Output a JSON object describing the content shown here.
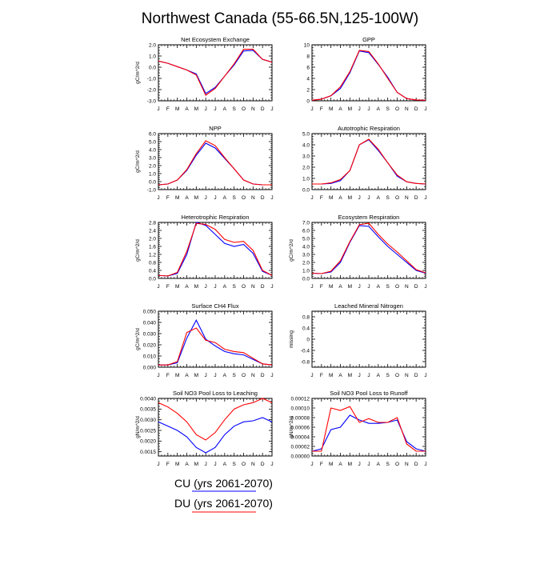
{
  "page": {
    "title": "Northwest Canada (55-66.5N,125-100W)"
  },
  "legend": [
    {
      "label": "CU (yrs 2061-2070)",
      "color": "#0000ff"
    },
    {
      "label": "DU (yrs 2061-2070)",
      "color": "#ff0000"
    }
  ],
  "chart_data": [
    {
      "type": "line",
      "title": "Net Ecosystem Exchange",
      "ylabel": "gC/m^2/d",
      "x": [
        "J",
        "F",
        "M",
        "A",
        "M",
        "J",
        "J",
        "A",
        "S",
        "O",
        "N",
        "D",
        "J"
      ],
      "ylim": [
        -3.0,
        2.0
      ],
      "yticks": [
        -3.0,
        -2.0,
        -1.0,
        0.0,
        1.0,
        2.0
      ],
      "ytick_labels": [
        "-3.0",
        "-2.0",
        "-1.0",
        "0.0",
        "1.0",
        "2.0"
      ],
      "series": [
        {
          "color": "#0000ff",
          "values": [
            0.55,
            0.35,
            0.05,
            -0.25,
            -0.6,
            -2.35,
            -1.8,
            -0.8,
            0.2,
            1.45,
            1.5,
            0.7,
            0.45
          ]
        },
        {
          "color": "#ff0000",
          "values": [
            0.55,
            0.35,
            0.05,
            -0.25,
            -0.7,
            -2.5,
            -1.9,
            -0.8,
            0.3,
            1.6,
            1.6,
            0.7,
            0.45
          ]
        }
      ]
    },
    {
      "type": "line",
      "title": "GPP",
      "ylabel": "",
      "x": [
        "J",
        "F",
        "M",
        "A",
        "M",
        "J",
        "J",
        "A",
        "S",
        "O",
        "N",
        "D",
        "J"
      ],
      "ylim": [
        0,
        10
      ],
      "yticks": [
        0,
        2,
        4,
        6,
        8,
        10
      ],
      "ytick_labels": [
        "0",
        "2",
        "4",
        "6",
        "8",
        "10"
      ],
      "series": [
        {
          "color": "#0000ff",
          "values": [
            0.1,
            0.3,
            0.9,
            2.2,
            5.0,
            8.9,
            8.6,
            6.5,
            4.2,
            1.5,
            0.4,
            0.15,
            0.1
          ]
        },
        {
          "color": "#ff0000",
          "values": [
            0.1,
            0.3,
            0.9,
            2.5,
            5.2,
            9.0,
            8.8,
            6.6,
            4.0,
            1.5,
            0.4,
            0.15,
            0.1
          ]
        }
      ]
    },
    {
      "type": "line",
      "title": "NPP",
      "ylabel": "gC/m^2/d",
      "x": [
        "J",
        "F",
        "M",
        "A",
        "M",
        "J",
        "J",
        "A",
        "S",
        "O",
        "N",
        "D",
        "J"
      ],
      "ylim": [
        -1.0,
        6.0
      ],
      "yticks": [
        -1.0,
        0.0,
        1.0,
        2.0,
        3.0,
        4.0,
        5.0,
        6.0
      ],
      "ytick_labels": [
        "-1.0",
        "0.0",
        "1.0",
        "2.0",
        "3.0",
        "4.0",
        "5.0",
        "6.0"
      ],
      "series": [
        {
          "color": "#0000ff",
          "values": [
            -0.4,
            -0.3,
            0.2,
            1.4,
            3.3,
            4.8,
            4.2,
            2.9,
            1.6,
            0.2,
            -0.3,
            -0.4,
            -0.4
          ]
        },
        {
          "color": "#ff0000",
          "values": [
            -0.4,
            -0.3,
            0.2,
            1.5,
            3.5,
            5.1,
            4.5,
            3.0,
            1.6,
            0.2,
            -0.3,
            -0.4,
            -0.4
          ]
        }
      ]
    },
    {
      "type": "line",
      "title": "Autotrophic Respiration",
      "ylabel": "",
      "x": [
        "J",
        "F",
        "M",
        "A",
        "M",
        "J",
        "J",
        "A",
        "S",
        "O",
        "N",
        "D",
        "J"
      ],
      "ylim": [
        0.0,
        5.0
      ],
      "yticks": [
        0.0,
        1.0,
        2.0,
        3.0,
        4.0,
        5.0
      ],
      "ytick_labels": [
        "0.0",
        "1.0",
        "2.0",
        "3.0",
        "4.0",
        "5.0"
      ],
      "series": [
        {
          "color": "#0000ff",
          "values": [
            0.5,
            0.5,
            0.55,
            0.8,
            1.7,
            4.0,
            4.45,
            3.5,
            2.4,
            1.2,
            0.7,
            0.55,
            0.5
          ]
        },
        {
          "color": "#ff0000",
          "values": [
            0.5,
            0.5,
            0.6,
            0.9,
            1.7,
            4.0,
            4.5,
            3.6,
            2.4,
            1.3,
            0.7,
            0.55,
            0.5
          ]
        }
      ]
    },
    {
      "type": "line",
      "title": "Heterotrophic Respiration",
      "ylabel": "gC/m^2/d",
      "x": [
        "J",
        "F",
        "M",
        "A",
        "M",
        "J",
        "J",
        "A",
        "S",
        "O",
        "N",
        "D",
        "J"
      ],
      "ylim": [
        0.0,
        2.8
      ],
      "yticks": [
        0.0,
        0.4,
        0.8,
        1.2,
        1.6,
        2.0,
        2.4,
        2.8
      ],
      "ytick_labels": [
        "0.0",
        "0.4",
        "0.8",
        "1.2",
        "1.6",
        "2.0",
        "2.4",
        "2.8"
      ],
      "series": [
        {
          "color": "#0000ff",
          "values": [
            0.15,
            0.12,
            0.25,
            1.2,
            2.8,
            2.65,
            2.2,
            1.75,
            1.6,
            1.7,
            1.25,
            0.35,
            0.15
          ]
        },
        {
          "color": "#ff0000",
          "values": [
            0.15,
            0.12,
            0.3,
            1.35,
            2.75,
            2.7,
            2.45,
            1.95,
            1.8,
            1.85,
            1.4,
            0.4,
            0.15
          ]
        }
      ]
    },
    {
      "type": "line",
      "title": "Ecosystem Respiration",
      "ylabel": "gC/m^2/d",
      "x": [
        "J",
        "F",
        "M",
        "A",
        "M",
        "J",
        "J",
        "A",
        "S",
        "O",
        "N",
        "D",
        "J"
      ],
      "ylim": [
        0.0,
        7.0
      ],
      "yticks": [
        0.0,
        1.0,
        2.0,
        3.0,
        4.0,
        5.0,
        6.0,
        7.0
      ],
      "ytick_labels": [
        "0.0",
        "1.0",
        "2.0",
        "3.0",
        "4.0",
        "5.0",
        "6.0",
        "7.0"
      ],
      "series": [
        {
          "color": "#0000ff",
          "values": [
            0.65,
            0.6,
            0.8,
            2.0,
            4.5,
            6.6,
            6.5,
            5.2,
            4.0,
            3.0,
            2.0,
            1.0,
            0.65
          ]
        },
        {
          "color": "#ff0000",
          "values": [
            0.65,
            0.6,
            0.9,
            2.2,
            4.6,
            6.7,
            6.9,
            5.5,
            4.3,
            3.3,
            2.2,
            1.1,
            0.7
          ]
        }
      ]
    },
    {
      "type": "line",
      "title": "Surface CH4 Flux",
      "ylabel": "gC/m^2/d",
      "x": [
        "J",
        "F",
        "M",
        "A",
        "M",
        "J",
        "J",
        "A",
        "S",
        "O",
        "N",
        "D",
        "J"
      ],
      "ylim": [
        0.0,
        0.05
      ],
      "yticks": [
        0.0,
        0.01,
        0.02,
        0.03,
        0.04,
        0.05
      ],
      "ytick_labels": [
        "0.000",
        "0.010",
        "0.020",
        "0.030",
        "0.040",
        "0.050"
      ],
      "series": [
        {
          "color": "#0000ff",
          "values": [
            0.002,
            0.002,
            0.004,
            0.026,
            0.042,
            0.025,
            0.019,
            0.014,
            0.012,
            0.011,
            0.007,
            0.003,
            0.002
          ]
        },
        {
          "color": "#ff0000",
          "values": [
            0.002,
            0.002,
            0.005,
            0.031,
            0.035,
            0.024,
            0.022,
            0.016,
            0.014,
            0.013,
            0.008,
            0.003,
            0.002
          ]
        }
      ]
    },
    {
      "type": "line",
      "title": "Leached Mineral Nitrogen",
      "ylabel": "missing",
      "x": [
        "J",
        "F",
        "M",
        "A",
        "M",
        "J",
        "J",
        "A",
        "S",
        "O",
        "N",
        "D",
        "J"
      ],
      "ylim": [
        -1.0,
        1.0
      ],
      "yticks": [
        -0.8,
        -0.4,
        0.0,
        0.4,
        0.8
      ],
      "ytick_labels": [
        "-0.8",
        "-0.4",
        "0",
        "0.4",
        "0.8"
      ],
      "series": []
    },
    {
      "type": "line",
      "title": "Soil NO3 Pool Loss to Leaching",
      "ylabel": "gN/m^2/d",
      "x": [
        "J",
        "F",
        "M",
        "A",
        "M",
        "J",
        "J",
        "A",
        "S",
        "O",
        "N",
        "D",
        "J"
      ],
      "ylim": [
        0.0013,
        0.004
      ],
      "yticks": [
        0.0015,
        0.002,
        0.0025,
        0.003,
        0.0035,
        0.004
      ],
      "ytick_labels": [
        "0.0015",
        "0.0020",
        "0.0025",
        "0.0030",
        "0.0035",
        "0.0040"
      ],
      "series": [
        {
          "color": "#0000ff",
          "values": [
            0.0029,
            0.0027,
            0.0025,
            0.0022,
            0.0017,
            0.00145,
            0.0017,
            0.0023,
            0.0027,
            0.0029,
            0.00295,
            0.0031,
            0.0029
          ]
        },
        {
          "color": "#ff0000",
          "values": [
            0.0038,
            0.0036,
            0.0033,
            0.0029,
            0.0023,
            0.00205,
            0.0024,
            0.003,
            0.0035,
            0.0037,
            0.0038,
            0.004,
            0.0038
          ]
        }
      ]
    },
    {
      "type": "line",
      "title": "Soil NO3 Pool Loss to Runoff",
      "ylabel": "gN/m^2/d",
      "x": [
        "J",
        "F",
        "M",
        "A",
        "M",
        "J",
        "J",
        "A",
        "S",
        "O",
        "N",
        "D",
        "J"
      ],
      "ylim": [
        0.0,
        0.00012
      ],
      "yticks": [
        0.0,
        2e-05,
        4e-05,
        6e-05,
        8e-05,
        0.0001,
        0.00012
      ],
      "ytick_labels": [
        "0.00000",
        "0.00002",
        "0.00004",
        "0.00006",
        "0.00008",
        "0.00010",
        "0.00012"
      ],
      "series": [
        {
          "color": "#0000ff",
          "values": [
            1e-05,
            1.5e-05,
            5.5e-05,
            6e-05,
            8.5e-05,
            7.5e-05,
            6.8e-05,
            6.8e-05,
            7e-05,
            7.5e-05,
            3e-05,
            1.5e-05,
            1e-05
          ]
        },
        {
          "color": "#ff0000",
          "values": [
            1e-05,
            1e-05,
            0.0001,
            9.5e-05,
            0.000103,
            7e-05,
            7.8e-05,
            7e-05,
            7e-05,
            8e-05,
            2.5e-05,
            1e-05,
            1e-05
          ]
        }
      ]
    }
  ]
}
